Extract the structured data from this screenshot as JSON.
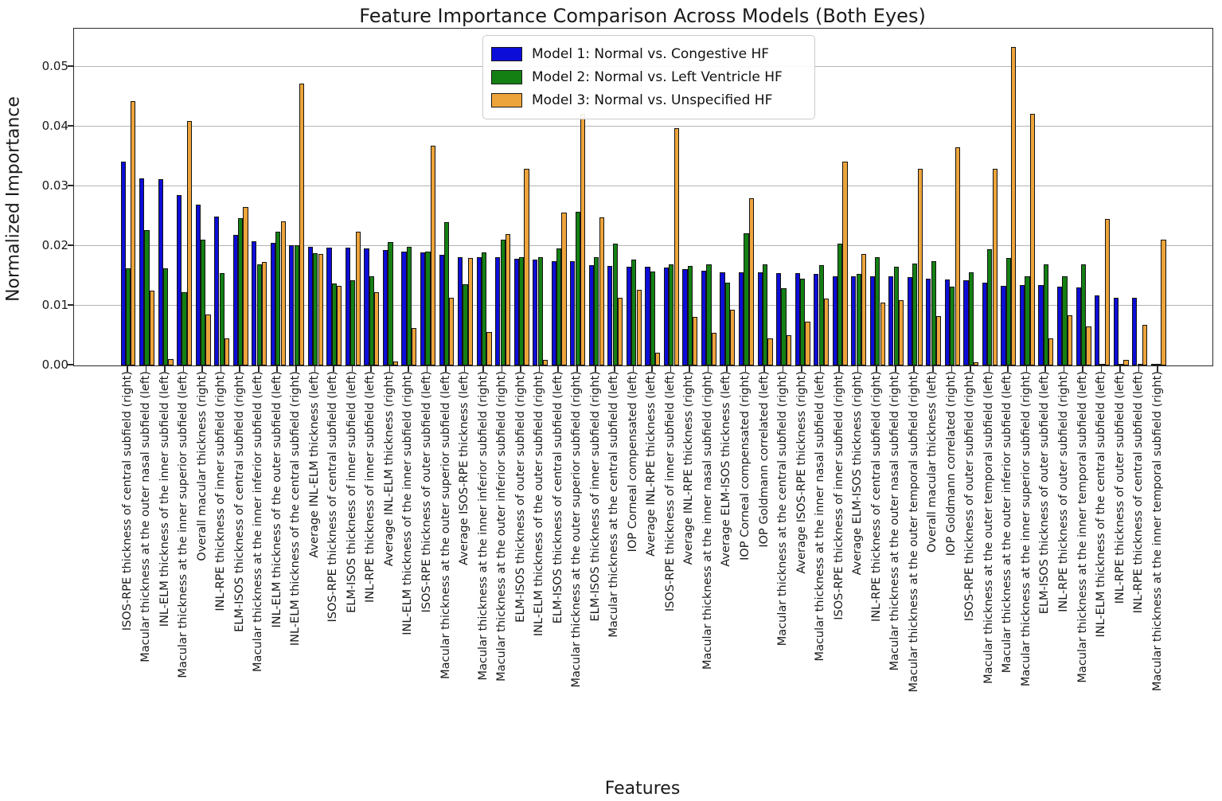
{
  "chart_data": {
    "type": "bar",
    "title": "Feature Importance Comparison Across Models (Both Eyes)",
    "xlabel": "Features",
    "ylabel": "Normalized Importance",
    "ylim": [
      0,
      0.0564
    ],
    "yticks": [
      0.0,
      0.01,
      0.02,
      0.03,
      0.04,
      0.05
    ],
    "ytick_labels": [
      "0.00",
      "0.01",
      "0.02",
      "0.03",
      "0.04",
      "0.05"
    ],
    "grid": true,
    "legend_position": "upper center",
    "categories": [
      "ISOS-RPE thickness of central subfield (right)",
      "Macular thickness at the outer nasal subfield (left)",
      "INL-ELM thickness of the inner subfield (left)",
      "Macular thickness at the inner superior subfield (left)",
      "Overall macular thickness (right)",
      "INL-RPE thickness of inner subfield (right)",
      "ELM-ISOS thickness of central subfield (right)",
      "Macular thickness at the inner inferior subfield (left)",
      "INL-ELM thickness of the outer subfield (left)",
      "INL-ELM thickness of the central subfield (right)",
      "Average INL-ELM thickness (left)",
      "ISOS-RPE thickness of central subfield (left)",
      "ELM-ISOS thickness of inner subfield (left)",
      "INL-RPE thickness of inner subfield (left)",
      "Average INL-ELM thickness (right)",
      "INL-ELM thickness of the inner subfield (right)",
      "ISOS-RPE thickness of outer subfield (left)",
      "Macular thickness at the outer superior subfield (left)",
      "Average ISOS-RPE thickness (left)",
      "Macular thickness at the inner inferior subfield (right)",
      "Macular thickness at the outer inferior subfield (right)",
      "ELM-ISOS thickness of outer subfield (right)",
      "INL-ELM thickness of the outer subfield (right)",
      "ELM-ISOS thickness of central subfield (left)",
      "Macular thickness at the outer superior subfield (right)",
      "ELM-ISOS thickness of inner subfield (right)",
      "Macular thickness at the central subfield (left)",
      "IOP Corneal compensated (left)",
      "Average INL-RPE thickness (left)",
      "ISOS-RPE thickness of inner subfield (left)",
      "Average INL-RPE thickness (right)",
      "Macular thickness at the inner nasal subfield (right)",
      "Average ELM-ISOS thickness (left)",
      "IOP Corneal compensated (right)",
      "IOP Goldmann correlated (left)",
      "Macular thickness at the central subfield (right)",
      "Average ISOS-RPE thickness (right)",
      "Macular thickness at the inner nasal subfield (left)",
      "ISOS-RPE thickness of inner subfield (right)",
      "Average ELM-ISOS thickness (right)",
      "INL-RPE thickness of central subfield (right)",
      "Macular thickness at the outer nasal subfield (right)",
      "Macular thickness at the outer temporal subfield (right)",
      "Overall macular thickness (left)",
      "IOP Goldmann correlated (right)",
      "ISOS-RPE thickness of outer subfield (right)",
      "Macular thickness at the outer temporal subfield (left)",
      "Macular thickness at the outer inferior subfield (left)",
      "Macular thickness at the inner superior subfield (right)",
      "ELM-ISOS thickness of outer subfield (left)",
      "INL-RPE thickness of outer subfield (right)",
      "Macular thickness at the inner temporal subfield (left)",
      "INL-ELM thickness of the central subfield (left)",
      "INL-RPE thickness of outer subfield (left)",
      "INL-RPE thickness of central subfield (left)",
      "Macular thickness at the inner temporal subfield (right)"
    ],
    "series": [
      {
        "name": "Model 1: Normal vs. Congestive HF",
        "color": "#0d0dd8",
        "values": [
          0.0342,
          0.0314,
          0.0312,
          0.0286,
          0.0269,
          0.025,
          0.0219,
          0.0208,
          0.0206,
          0.0201,
          0.0199,
          0.0197,
          0.0197,
          0.0196,
          0.0193,
          0.0191,
          0.0189,
          0.0185,
          0.0182,
          0.0182,
          0.0181,
          0.0179,
          0.0178,
          0.0175,
          0.0175,
          0.0168,
          0.0167,
          0.0166,
          0.0165,
          0.0164,
          0.0161,
          0.0159,
          0.0156,
          0.0156,
          0.0156,
          0.0155,
          0.0155,
          0.0154,
          0.0149,
          0.0149,
          0.0149,
          0.0149,
          0.0148,
          0.0145,
          0.0144,
          0.0143,
          0.0139,
          0.0134,
          0.0135,
          0.0135,
          0.0132,
          0.0131,
          0.0118,
          0.0113,
          0.0113,
          0.0003
        ]
      },
      {
        "name": "Model 2: Normal vs. Left Ventricle HF",
        "color": "#148014",
        "values": [
          0.0163,
          0.0227,
          0.0163,
          0.0123,
          0.0211,
          0.0155,
          0.0247,
          0.017,
          0.0224,
          0.0201,
          0.0188,
          0.0138,
          0.0143,
          0.0149,
          0.0207,
          0.0199,
          0.0191,
          0.024,
          0.0136,
          0.019,
          0.0211,
          0.0182,
          0.0182,
          0.0196,
          0.0257,
          0.0182,
          0.0204,
          0.0178,
          0.0158,
          0.017,
          0.0167,
          0.017,
          0.0139,
          0.0222,
          0.0169,
          0.013,
          0.0146,
          0.0168,
          0.0204,
          0.0154,
          0.0181,
          0.0165,
          0.0171,
          0.0175,
          0.0132,
          0.0156,
          0.0195,
          0.018,
          0.015,
          0.017,
          0.015,
          0.0169,
          0.0002,
          0.0001,
          0.0001,
          0.0001
        ]
      },
      {
        "name": "Model 3: Normal vs. Unspecified HF",
        "color": "#eda43b",
        "values": [
          0.0443,
          0.0126,
          0.0011,
          0.041,
          0.0085,
          0.0045,
          0.0265,
          0.0173,
          0.0242,
          0.0472,
          0.0187,
          0.0134,
          0.0224,
          0.0123,
          0.0007,
          0.0063,
          0.0368,
          0.0113,
          0.018,
          0.0056,
          0.022,
          0.033,
          0.0009,
          0.0256,
          0.0421,
          0.0248,
          0.0113,
          0.0127,
          0.0022,
          0.0398,
          0.0081,
          0.0055,
          0.0094,
          0.028,
          0.0045,
          0.0051,
          0.0074,
          0.0112,
          0.0342,
          0.0187,
          0.0106,
          0.0109,
          0.0329,
          0.0083,
          0.0366,
          0.0005,
          0.033,
          0.0533,
          0.0421,
          0.0045,
          0.0084,
          0.0065,
          0.0245,
          0.0009,
          0.0068,
          0.0211
        ]
      }
    ]
  }
}
